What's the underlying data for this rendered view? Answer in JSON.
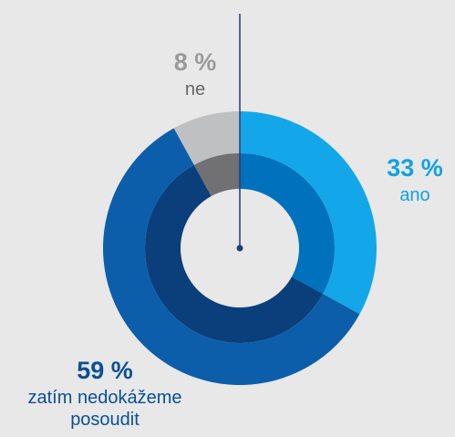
{
  "chart_data": {
    "type": "donut",
    "categories": [
      "ano",
      "zatím nedokážeme posoudit",
      "ne"
    ],
    "values": [
      33,
      59,
      8
    ],
    "value_labels": [
      "33 %",
      "59 %",
      "8 %"
    ],
    "colors": [
      "#13a7e9",
      "#0c5eaa",
      "#bfc0c2"
    ],
    "inner_colors": [
      "#0071bd",
      "#0a3f7c",
      "#717174"
    ],
    "label_colors": [
      "#13a1e3",
      "#0b4f98",
      "#9a9a9c"
    ]
  }
}
